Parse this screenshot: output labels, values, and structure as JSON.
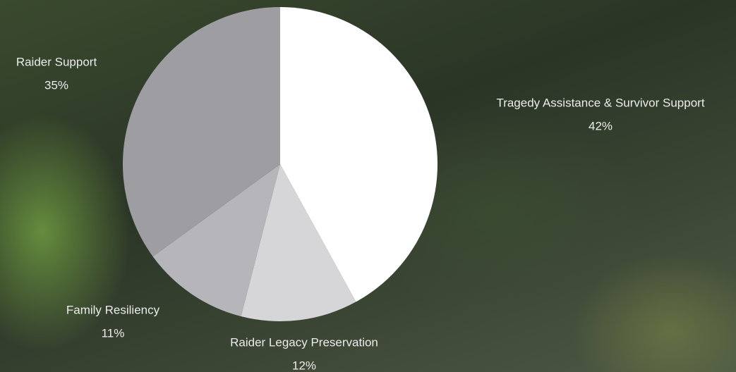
{
  "chart_data": {
    "type": "pie",
    "categories": [
      "Tragedy Assistance & Survivor Support",
      "Raider Legacy Preservation",
      "Family Resiliency",
      "Raider Support"
    ],
    "values": [
      42,
      12,
      11,
      35
    ],
    "value_labels": [
      "42%",
      "12%",
      "11%",
      "35%"
    ],
    "colors": [
      "#ffffff",
      "#d6d6d8",
      "#b6b6ba",
      "#9e9ea2"
    ]
  }
}
